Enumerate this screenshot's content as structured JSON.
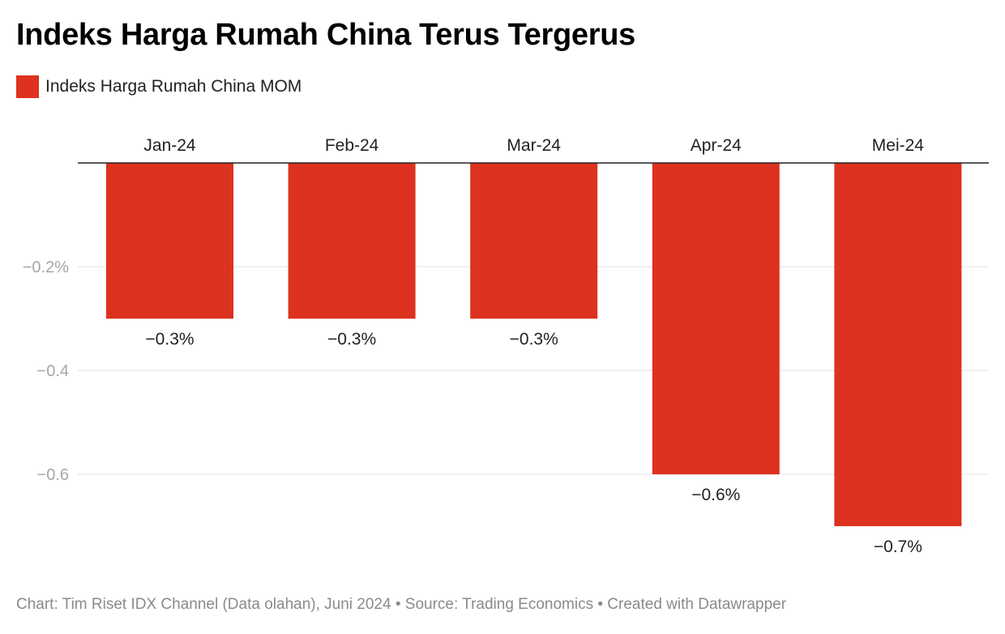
{
  "title": "Indeks Harga Rumah China Terus Tergerus",
  "legend": {
    "label": "Indeks Harga Rumah China MOM",
    "color": "#dd321f"
  },
  "footer": "Chart: Tim Riset IDX Channel (Data olahan), Juni 2024 • Source: Trading Economics • Created with Datawrapper",
  "chart_data": {
    "type": "bar",
    "title": "Indeks Harga Rumah China Terus Tergerus",
    "categories": [
      "Jan-24",
      "Feb-24",
      "Mar-24",
      "Apr-24",
      "Mei-24"
    ],
    "series": [
      {
        "name": "Indeks Harga Rumah China MOM",
        "values": [
          -0.3,
          -0.3,
          -0.3,
          -0.6,
          -0.7
        ]
      }
    ],
    "data_labels": [
      "−0.3%",
      "−0.3%",
      "−0.3%",
      "−0.6%",
      "−0.7%"
    ],
    "yticks": [
      -0.2,
      -0.4,
      -0.6
    ],
    "ytick_labels": [
      "−0.2%",
      "−0.4",
      "−0.6"
    ],
    "ylim": [
      -0.75,
      0
    ],
    "xlabel": "",
    "ylabel": "",
    "grid": true,
    "x_axis_position": "top",
    "legend_position": "top-left"
  }
}
